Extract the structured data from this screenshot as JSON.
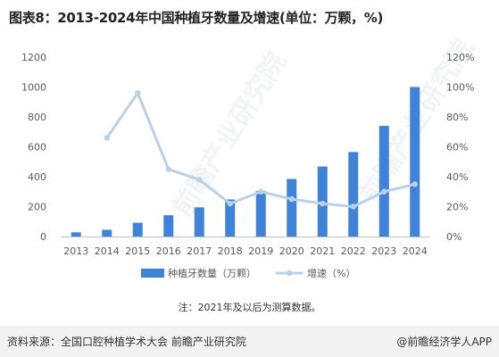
{
  "title": "图表8：2013-2024年中国种植牙数量及增速(单位：万颗，%)",
  "note": "注：2021年及以后为测算数据。",
  "source": "资料来源：全国口腔种植学术大会 前瞻产业研究院",
  "brand": "@前瞻经济学人APP",
  "watermark": "前瞻产业研究院",
  "colors": {
    "bar": "#3f82d6",
    "line": "#b9d0e6",
    "marker": "#b9d0e6",
    "axis": "#bfbfbf",
    "text": "#595959"
  },
  "chart_data": {
    "type": "bar",
    "categories": [
      "2013",
      "2014",
      "2015",
      "2016",
      "2017",
      "2018",
      "2019",
      "2020",
      "2021",
      "2022",
      "2023",
      "2024"
    ],
    "series": [
      {
        "name": "种植牙数量（万颗）",
        "type": "bar",
        "axis": "left",
        "values": [
          28,
          45,
          92,
          142,
          195,
          248,
          305,
          385,
          468,
          565,
          740,
          1000
        ]
      },
      {
        "name": "增速（%）",
        "type": "line",
        "axis": "right",
        "values": [
          null,
          66,
          96,
          45,
          38,
          22,
          30,
          25,
          22,
          20,
          30,
          35
        ]
      }
    ],
    "y_left": {
      "ylim": [
        0,
        1200
      ],
      "ticks": [
        "0",
        "200",
        "400",
        "600",
        "800",
        "1000",
        "1200"
      ]
    },
    "y_right": {
      "ylim": [
        0,
        120
      ],
      "ticks": [
        "0%",
        "20%",
        "40%",
        "60%",
        "80%",
        "100%",
        "120%"
      ]
    },
    "grid": false,
    "legend": "bottom"
  }
}
